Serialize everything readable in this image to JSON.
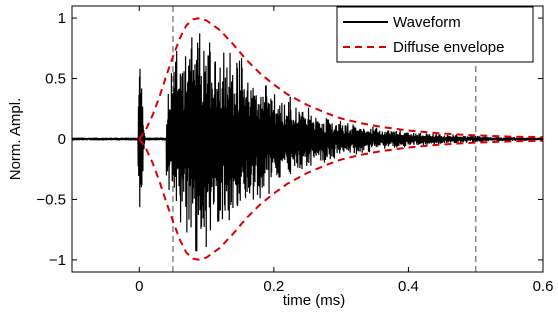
{
  "chart_data": {
    "type": "line",
    "title": "",
    "xlabel": "time (ms)",
    "ylabel": "Norm. Ampl.",
    "xlim": [
      -0.1,
      0.6
    ],
    "ylim": [
      -1.1,
      1.1
    ],
    "x_ticks": [
      0,
      0.2,
      0.4,
      0.6
    ],
    "x_tick_labels": [
      "0",
      "0.2",
      "0.4",
      "0.6"
    ],
    "y_ticks": [
      -1,
      -0.5,
      0,
      0.5,
      1
    ],
    "y_tick_labels": [
      "−1",
      "−0.5",
      "0",
      "0.5",
      "1"
    ],
    "grid": false,
    "legend_position": "top-right",
    "vertical_lines": [
      0.05,
      0.5
    ],
    "series": [
      {
        "name": "Waveform",
        "color": "#000000",
        "style": "solid",
        "description_shape": {
          "direct_arrival_time": 0.0,
          "direct_arrival_peak": 0.72,
          "reflection_peak_time": 0.085,
          "reflection_peak_amplitude": 1.0
        }
      },
      {
        "name": "Diffuse envelope",
        "color": "#dd0000",
        "style": "dashed",
        "x": [
          0.0,
          0.01,
          0.02,
          0.03,
          0.04,
          0.05,
          0.06,
          0.07,
          0.08,
          0.09,
          0.1,
          0.12,
          0.14,
          0.16,
          0.18,
          0.2,
          0.22,
          0.25,
          0.28,
          0.3,
          0.33,
          0.36,
          0.4,
          0.45,
          0.5,
          0.55,
          0.6
        ],
        "y": [
          0.0,
          0.08,
          0.2,
          0.35,
          0.52,
          0.68,
          0.83,
          0.94,
          0.99,
          1.0,
          0.98,
          0.9,
          0.78,
          0.65,
          0.54,
          0.45,
          0.37,
          0.28,
          0.21,
          0.17,
          0.13,
          0.1,
          0.07,
          0.045,
          0.03,
          0.02,
          0.015
        ]
      }
    ]
  }
}
